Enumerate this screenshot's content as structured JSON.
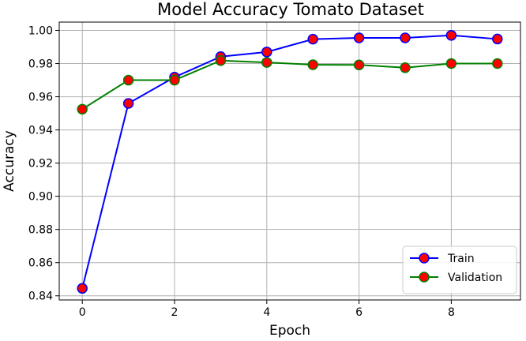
{
  "chart_data": {
    "type": "line",
    "title": "Model Accuracy Tomato Dataset",
    "xlabel": "Epoch",
    "ylabel": "Accuracy",
    "x": [
      0,
      1,
      2,
      3,
      4,
      5,
      6,
      7,
      8,
      9
    ],
    "xlim": [
      -0.5,
      9.5
    ],
    "ylim": [
      0.8375,
      1.005
    ],
    "xticks": [
      0,
      2,
      4,
      6,
      8
    ],
    "yticks": [
      0.84,
      0.86,
      0.88,
      0.9,
      0.92,
      0.94,
      0.96,
      0.98,
      1.0
    ],
    "xtick_labels": [
      "0",
      "2",
      "4",
      "6",
      "8"
    ],
    "ytick_labels": [
      "0.84",
      "0.86",
      "0.88",
      "0.90",
      "0.92",
      "0.94",
      "0.96",
      "0.98",
      "1.00"
    ],
    "grid": true,
    "legend_position": "bottom-right",
    "series": [
      {
        "name": "Train",
        "color": "#0000ff",
        "marker_color": "#ff0000",
        "values": [
          0.8445,
          0.956,
          0.9718,
          0.9842,
          0.987,
          0.9947,
          0.9955,
          0.9955,
          0.997,
          0.9948
        ]
      },
      {
        "name": "Validation",
        "color": "#008000",
        "marker_color": "#ff0000",
        "values": [
          0.9525,
          0.97,
          0.97,
          0.9818,
          0.9807,
          0.9793,
          0.9792,
          0.9775,
          0.98,
          0.98
        ]
      }
    ]
  }
}
